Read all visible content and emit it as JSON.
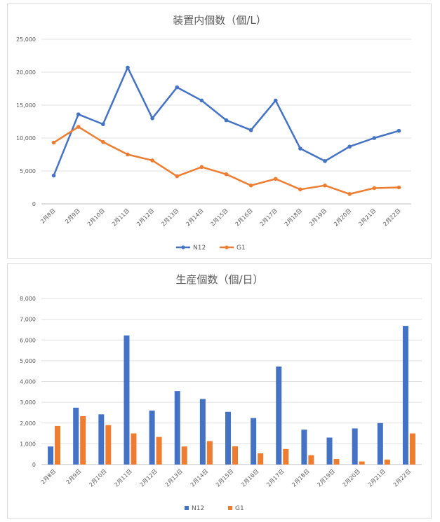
{
  "chart_data": [
    {
      "type": "line",
      "title": "装置内個数（個/L）",
      "categories": [
        "2月8日",
        "2月9日",
        "2月10日",
        "2月11日",
        "2月12日",
        "2月13日",
        "2月14日",
        "2月15日",
        "2月16日",
        "2月17日",
        "2月18日",
        "2月19日",
        "2月20日",
        "2月21日",
        "2月22日"
      ],
      "y_ticks": [
        "0",
        "5,000",
        "10,000",
        "15,000",
        "20,000",
        "25,000"
      ],
      "ylim": [
        0,
        25000
      ],
      "grid": true,
      "legend_position": "bottom",
      "series": [
        {
          "name": "N12",
          "color": "#4472c4",
          "values": [
            4300,
            13600,
            12100,
            20700,
            13000,
            17700,
            15700,
            12700,
            11200,
            15700,
            8400,
            6500,
            8700,
            10000,
            11100
          ]
        },
        {
          "name": "G1",
          "color": "#ed7d31",
          "values": [
            9300,
            11700,
            9400,
            7500,
            6600,
            4200,
            5600,
            4500,
            2800,
            3800,
            2200,
            2800,
            1500,
            2400,
            2500
          ]
        }
      ]
    },
    {
      "type": "bar",
      "title": "生産個数（個/日）",
      "categories": [
        "2月8日",
        "2月9日",
        "2月10日",
        "2月11日",
        "2月12日",
        "2月13日",
        "2月14日",
        "2月15日",
        "2月16日",
        "2月17日",
        "2月18日",
        "2月19日",
        "2月20日",
        "2月21日",
        "2月22日"
      ],
      "y_ticks": [
        "0",
        "1,000",
        "2,000",
        "3,000",
        "4,000",
        "5,000",
        "6,000",
        "7,000",
        "8,000"
      ],
      "ylim": [
        0,
        8000
      ],
      "grid": true,
      "legend_position": "bottom",
      "series": [
        {
          "name": "N12",
          "color": "#4472c4",
          "values": [
            870,
            2740,
            2420,
            6220,
            2600,
            3540,
            3160,
            2540,
            2240,
            4720,
            1680,
            1300,
            1740,
            2000,
            6680
          ]
        },
        {
          "name": "G1",
          "color": "#ed7d31",
          "values": [
            1860,
            2330,
            1900,
            1500,
            1330,
            870,
            1130,
            880,
            540,
            750,
            450,
            270,
            150,
            240,
            1500
          ]
        }
      ]
    }
  ]
}
